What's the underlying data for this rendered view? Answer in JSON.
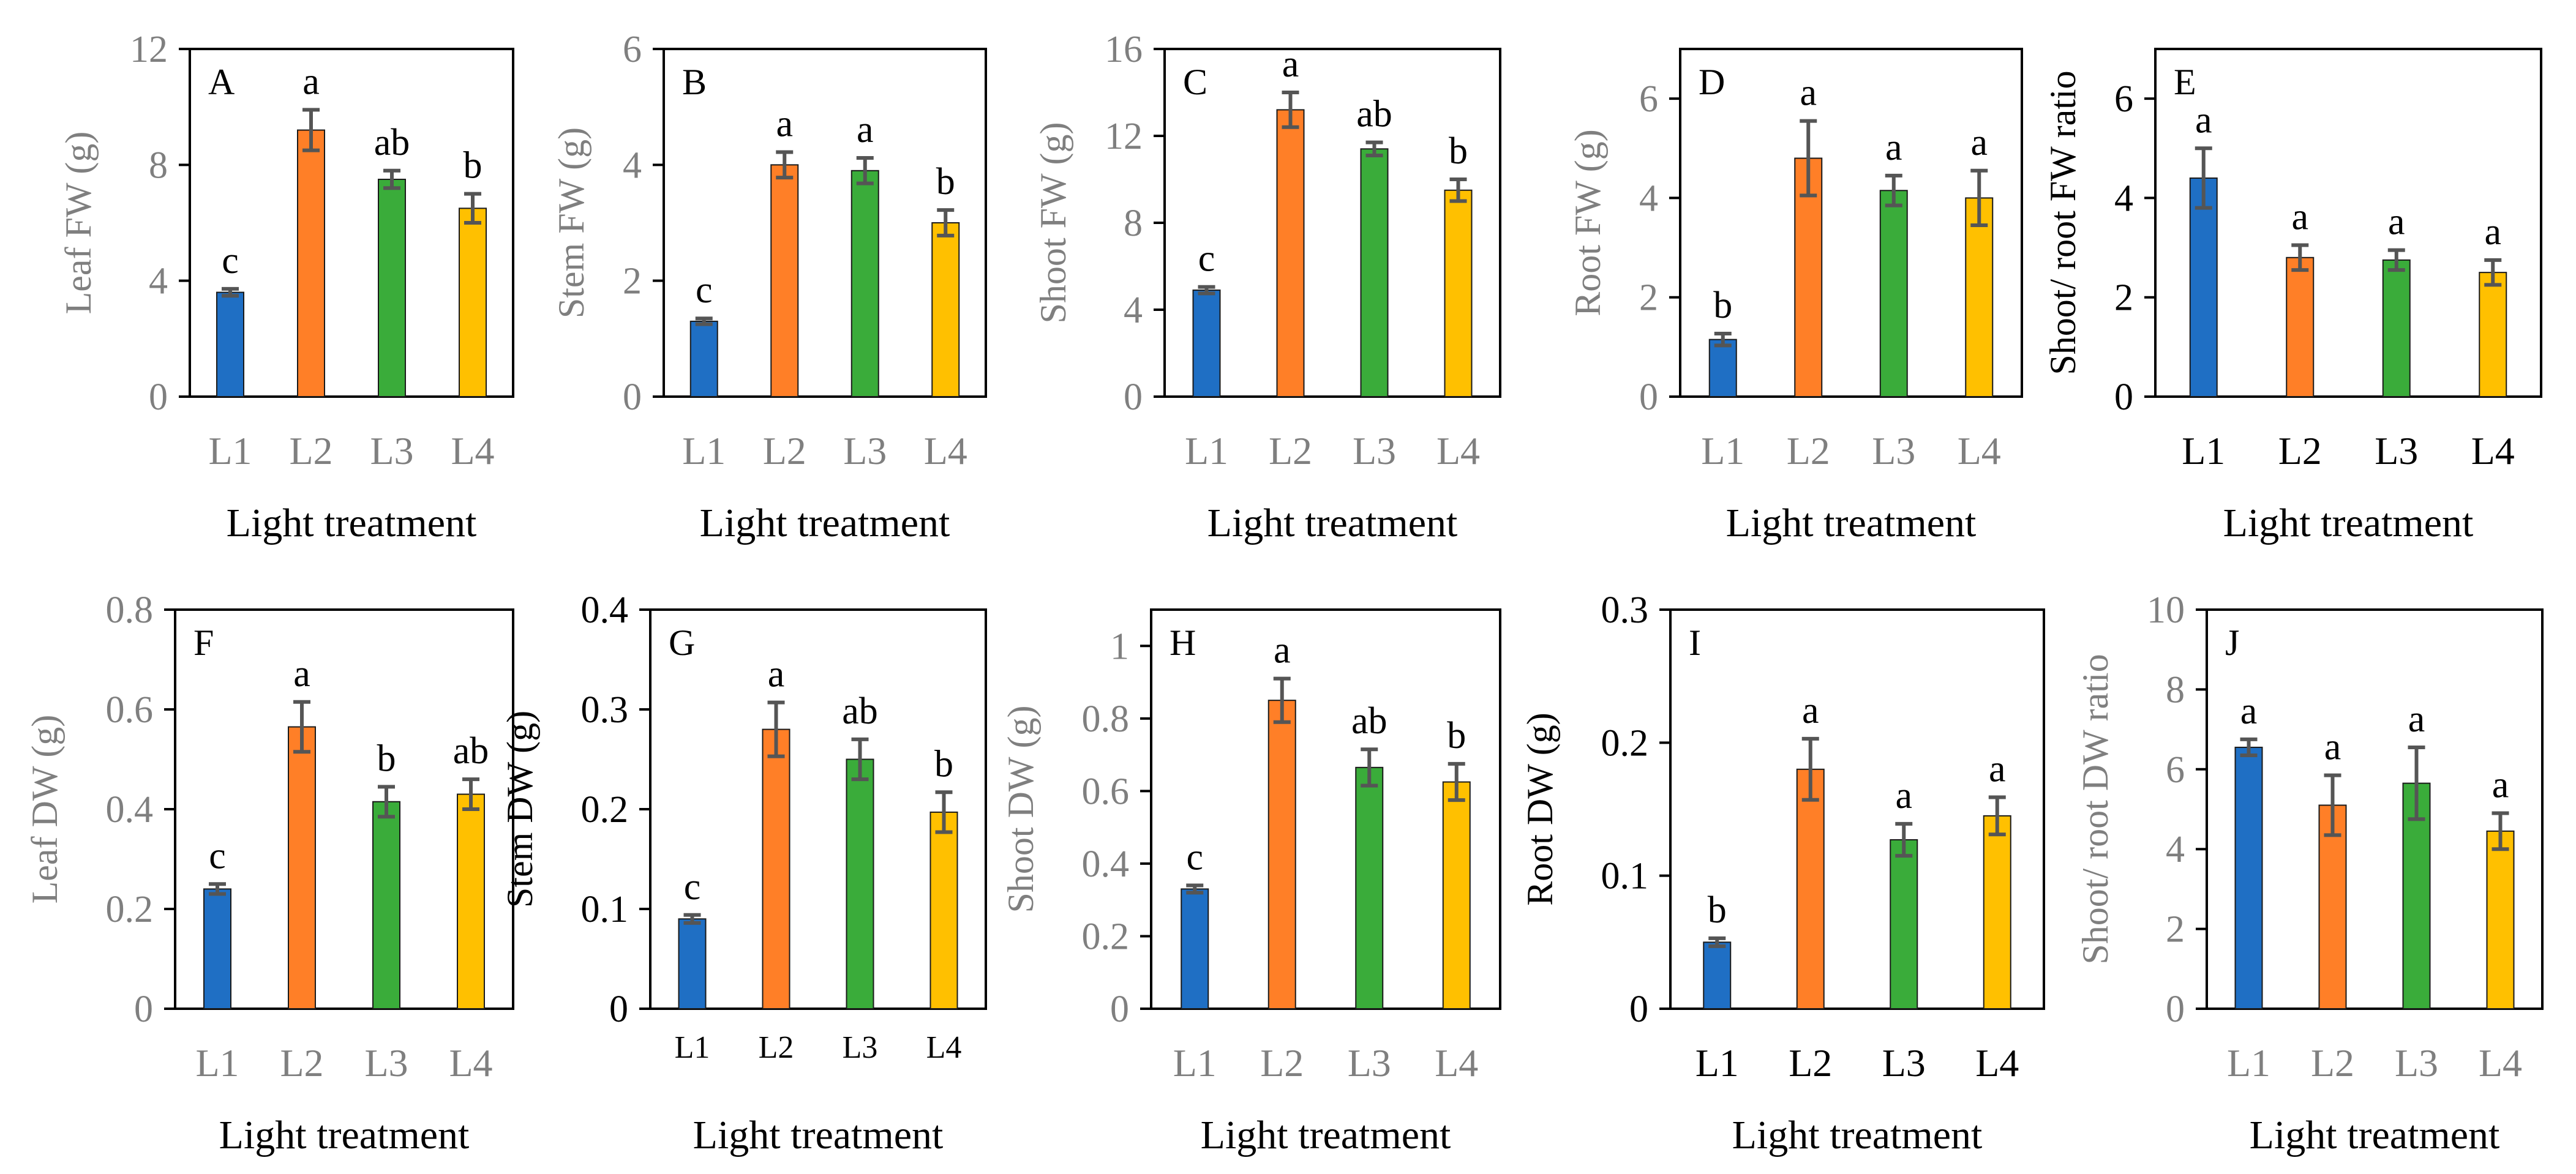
{
  "colors": {
    "L1": "#1f6fc4",
    "L2": "#ff7f27",
    "L3": "#3aac3a",
    "L4": "#ffc000",
    "error_bar": "#555555",
    "gray_text": "#7f7f7f"
  },
  "chart_data": [
    {
      "panel": "A",
      "type": "bar",
      "ylabel": "Leaf FW (g)",
      "xlabel": "Light treatment",
      "categories": [
        "L1",
        "L2",
        "L3",
        "L4"
      ],
      "values": [
        3.6,
        9.2,
        7.5,
        6.5
      ],
      "errors": [
        0.12,
        0.7,
        0.3,
        0.5
      ],
      "significance": [
        "c",
        "a",
        "ab",
        "b"
      ],
      "ylim": [
        0,
        12
      ],
      "ticks": [
        "0",
        "4",
        "8",
        "12"
      ],
      "tick_style": "gray",
      "ylabel_style": "gray",
      "cat_style": "gray"
    },
    {
      "panel": "B",
      "type": "bar",
      "ylabel": "Stem FW (g)",
      "xlabel": "Light treatment",
      "categories": [
        "L1",
        "L2",
        "L3",
        "L4"
      ],
      "values": [
        1.3,
        4.0,
        3.9,
        3.0
      ],
      "errors": [
        0.05,
        0.22,
        0.22,
        0.22
      ],
      "significance": [
        "c",
        "a",
        "a",
        "b"
      ],
      "ylim": [
        0,
        6
      ],
      "ticks": [
        "0",
        "2",
        "4",
        "6"
      ],
      "tick_style": "gray",
      "ylabel_style": "gray",
      "cat_style": "gray"
    },
    {
      "panel": "C",
      "type": "bar",
      "ylabel": "Shoot FW (g)",
      "xlabel": "Light treatment",
      "categories": [
        "L1",
        "L2",
        "L3",
        "L4"
      ],
      "values": [
        4.9,
        13.2,
        11.4,
        9.5
      ],
      "errors": [
        0.15,
        0.8,
        0.3,
        0.5
      ],
      "significance": [
        "c",
        "a",
        "ab",
        "b"
      ],
      "ylim": [
        0,
        16
      ],
      "ticks": [
        "0",
        "4",
        "8",
        "12",
        "16"
      ],
      "tick_style": "gray",
      "ylabel_style": "gray",
      "cat_style": "gray"
    },
    {
      "panel": "D",
      "type": "bar",
      "ylabel": "Root FW (g)",
      "xlabel": "Light treatment",
      "categories": [
        "L1",
        "L2",
        "L3",
        "L4"
      ],
      "values": [
        1.15,
        4.8,
        4.15,
        4.0
      ],
      "errors": [
        0.12,
        0.75,
        0.3,
        0.55
      ],
      "significance": [
        "b",
        "a",
        "a",
        "a"
      ],
      "ylim": [
        0,
        7
      ],
      "ticks": [
        "0",
        "2",
        "4",
        "6"
      ],
      "tick_style": "gray",
      "ylabel_style": "gray",
      "cat_style": "gray"
    },
    {
      "panel": "E",
      "type": "bar",
      "ylabel": "Shoot/ root FW ratio",
      "xlabel": "Light treatment",
      "categories": [
        "L1",
        "L2",
        "L3",
        "L4"
      ],
      "values": [
        4.4,
        2.8,
        2.75,
        2.5
      ],
      "errors": [
        0.6,
        0.25,
        0.2,
        0.25
      ],
      "significance": [
        "a",
        "a",
        "a",
        "a"
      ],
      "ylim": [
        0,
        7
      ],
      "ticks": [
        "0",
        "2",
        "4",
        "6"
      ],
      "tick_style": "black",
      "ylabel_style": "black",
      "cat_style": "black"
    },
    {
      "panel": "F",
      "type": "bar",
      "ylabel": "Leaf DW (g)",
      "xlabel": "Light treatment",
      "categories": [
        "L1",
        "L2",
        "L3",
        "L4"
      ],
      "values": [
        0.24,
        0.565,
        0.415,
        0.43
      ],
      "errors": [
        0.01,
        0.05,
        0.03,
        0.03
      ],
      "significance": [
        "c",
        "a",
        "b",
        "ab"
      ],
      "ylim": [
        0,
        0.8
      ],
      "ticks": [
        "0",
        "0.2",
        "0.4",
        "0.6",
        "0.8"
      ],
      "tick_style": "gray",
      "ylabel_style": "gray",
      "cat_style": "gray"
    },
    {
      "panel": "G",
      "type": "bar",
      "ylabel": "Stem DW (g)",
      "xlabel": "Light treatment",
      "categories": [
        "L1",
        "L2",
        "L3",
        "L4"
      ],
      "values": [
        0.09,
        0.28,
        0.25,
        0.197
      ],
      "errors": [
        0.004,
        0.027,
        0.02,
        0.02
      ],
      "significance": [
        "c",
        "a",
        "ab",
        "b"
      ],
      "ylim": [
        0,
        0.4
      ],
      "ticks": [
        "0",
        "0.1",
        "0.2",
        "0.3",
        "0.4"
      ],
      "tick_style": "black",
      "ylabel_style": "black",
      "cat_style": "black_small"
    },
    {
      "panel": "H",
      "type": "bar",
      "ylabel": "Shoot DW (g)",
      "xlabel": "Light treatment",
      "categories": [
        "L1",
        "L2",
        "L3",
        "L4"
      ],
      "values": [
        0.33,
        0.85,
        0.665,
        0.625
      ],
      "errors": [
        0.01,
        0.06,
        0.05,
        0.05
      ],
      "significance": [
        "c",
        "a",
        "ab",
        "b"
      ],
      "ylim": [
        0,
        1.1
      ],
      "ticks": [
        "0",
        "0.2",
        "0.4",
        "0.6",
        "0.8",
        "1"
      ],
      "tick_style": "gray",
      "ylabel_style": "gray",
      "cat_style": "gray"
    },
    {
      "panel": "I",
      "type": "bar",
      "ylabel": "Root DW (g)",
      "xlabel": "Light treatment",
      "categories": [
        "L1",
        "L2",
        "L3",
        "L4"
      ],
      "values": [
        0.05,
        0.18,
        0.127,
        0.145
      ],
      "errors": [
        0.003,
        0.023,
        0.012,
        0.014
      ],
      "significance": [
        "b",
        "a",
        "a",
        "a"
      ],
      "ylim": [
        0,
        0.3
      ],
      "ticks": [
        "0",
        "0.1",
        "0.2",
        "0.3"
      ],
      "tick_style": "black",
      "ylabel_style": "black",
      "cat_style": "black"
    },
    {
      "panel": "J",
      "type": "bar",
      "ylabel": "Shoot/ root DW ratio",
      "xlabel": "Light treatment",
      "categories": [
        "L1",
        "L2",
        "L3",
        "L4"
      ],
      "values": [
        6.55,
        5.1,
        5.65,
        4.45
      ],
      "errors": [
        0.2,
        0.75,
        0.9,
        0.45
      ],
      "significance": [
        "a",
        "a",
        "a",
        "a"
      ],
      "ylim": [
        0,
        10
      ],
      "ticks": [
        "0",
        "2",
        "4",
        "6",
        "8",
        "10"
      ],
      "tick_style": "gray",
      "ylabel_style": "gray",
      "cat_style": "gray"
    }
  ]
}
